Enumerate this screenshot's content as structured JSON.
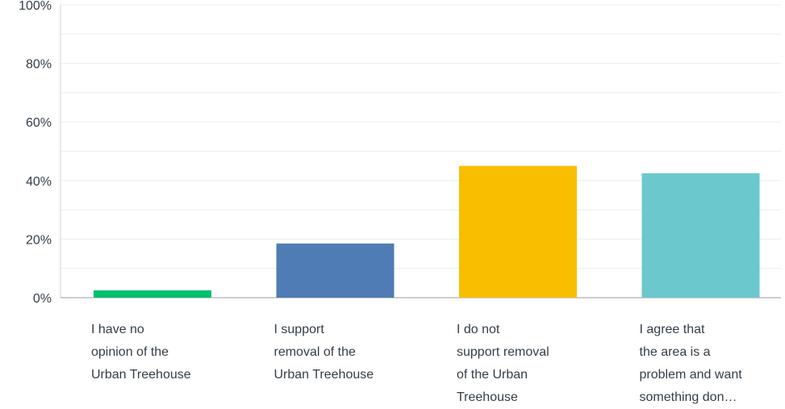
{
  "chart_data": {
    "type": "bar",
    "categories": [
      [
        "I have no",
        "opinion of the",
        "Urban Treehouse"
      ],
      [
        "I support",
        "removal of the",
        "Urban Treehouse"
      ],
      [
        "I do not",
        "support removal",
        "of the Urban",
        "Treehouse"
      ],
      [
        "I agree that",
        "the area is a",
        "problem and want",
        "something don…"
      ]
    ],
    "values": [
      2.5,
      18.5,
      45,
      42.5
    ],
    "ylim": [
      0,
      100
    ],
    "y_ticks": [
      "0%",
      "20%",
      "40%",
      "60%",
      "80%",
      "100%"
    ],
    "y_tick_values": [
      0,
      20,
      40,
      60,
      80,
      100
    ],
    "colors": [
      "#00bf6f",
      "#507cb6",
      "#f9be00",
      "#6bc8cd"
    ],
    "grid": true,
    "minor_grid": true,
    "legend": "none"
  }
}
